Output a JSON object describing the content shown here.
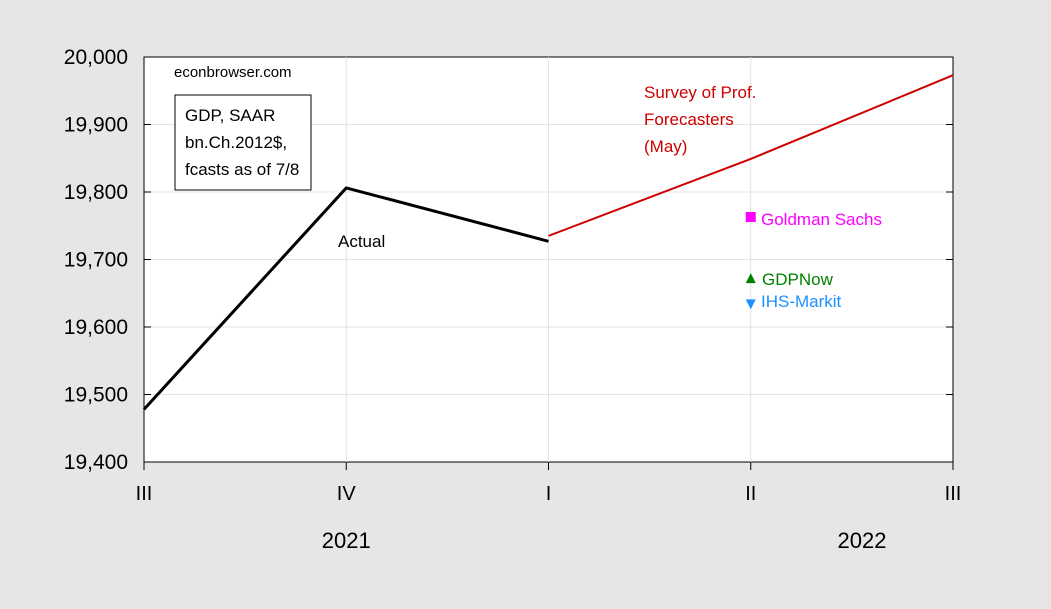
{
  "chart_data": {
    "type": "line",
    "title": "",
    "xlabel": "",
    "ylabel": "",
    "ylim": [
      19400,
      20000
    ],
    "yticks": [
      19400,
      19500,
      19600,
      19700,
      19800,
      19900,
      20000
    ],
    "ytick_labels": [
      "19,400",
      "19,500",
      "19,600",
      "19,700",
      "19,800",
      "19,900",
      "20,000"
    ],
    "categories": [
      "III",
      "IV",
      "I",
      "II",
      "III"
    ],
    "year_labels": [
      {
        "label": "2021",
        "at_category": 1
      },
      {
        "label": "2022",
        "at_category": 3.55
      }
    ],
    "grid": true,
    "watermark": "econbrowser.com",
    "legend_box": {
      "lines": [
        "GDP, SAAR",
        "bn.Ch.2012$,",
        "fcasts as of 7/8"
      ],
      "placement": "top-left"
    },
    "series": [
      {
        "name": "Actual",
        "kind": "line",
        "color": "#000000",
        "x": [
          0,
          1,
          2
        ],
        "values": [
          19478,
          19806,
          19727
        ]
      },
      {
        "name": "Survey of Prof. Forecasters (May)",
        "label_lines": [
          "Survey of Prof.",
          "Forecasters",
          "(May)"
        ],
        "kind": "line",
        "color": "#cc0000",
        "x": [
          2,
          3,
          4
        ],
        "values": [
          19735,
          19849,
          19973
        ]
      },
      {
        "name": "Goldman Sachs",
        "kind": "point",
        "marker": "square",
        "color": "#ff00ff",
        "x": [
          3
        ],
        "values": [
          19763
        ]
      },
      {
        "name": "GDPNow",
        "kind": "point",
        "marker": "triangle-up",
        "color": "#008000",
        "x": [
          3
        ],
        "values": [
          19671
        ]
      },
      {
        "name": "IHS-Markit",
        "kind": "point",
        "marker": "triangle-down",
        "color": "#1e90ff",
        "x": [
          3
        ],
        "values": [
          19635
        ]
      }
    ]
  }
}
